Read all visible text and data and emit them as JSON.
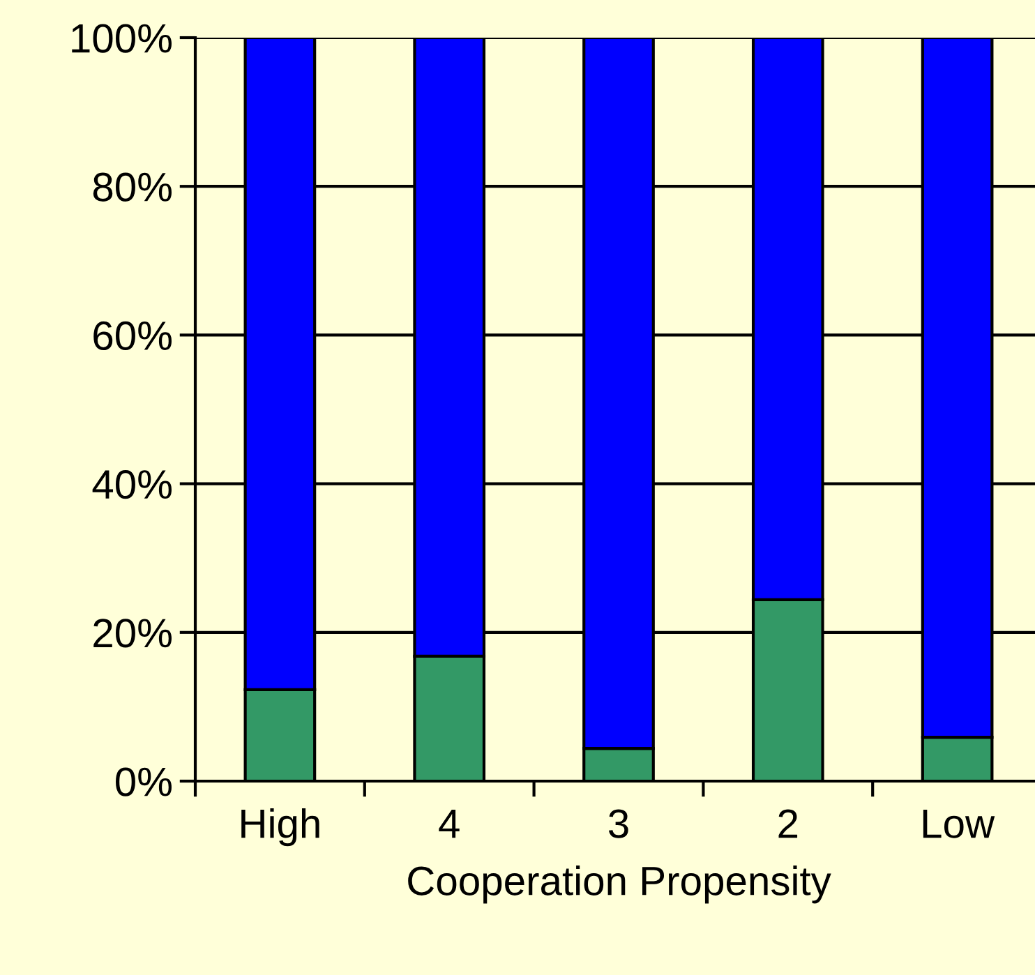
{
  "chart_data": {
    "type": "bar",
    "stacked": true,
    "xlabel": "Cooperation Propensity",
    "categories": [
      "High",
      "4",
      "3",
      "2",
      "Low"
    ],
    "series": [
      {
        "color": "#339966",
        "values": [
          12.3,
          16.8,
          4.4,
          24.4,
          5.9
        ]
      },
      {
        "color": "#0000ff",
        "values": [
          87.7,
          83.2,
          95.6,
          75.6,
          94.1
        ]
      }
    ],
    "ylim": [
      0,
      100
    ],
    "yticks": [
      {
        "value": 0,
        "label": "0%"
      },
      {
        "value": 20,
        "label": "20%"
      },
      {
        "value": 40,
        "label": "40%"
      },
      {
        "value": 60,
        "label": "60%"
      },
      {
        "value": 80,
        "label": "80%"
      },
      {
        "value": 100,
        "label": "100%"
      }
    ],
    "grid": "y",
    "legend": false
  }
}
